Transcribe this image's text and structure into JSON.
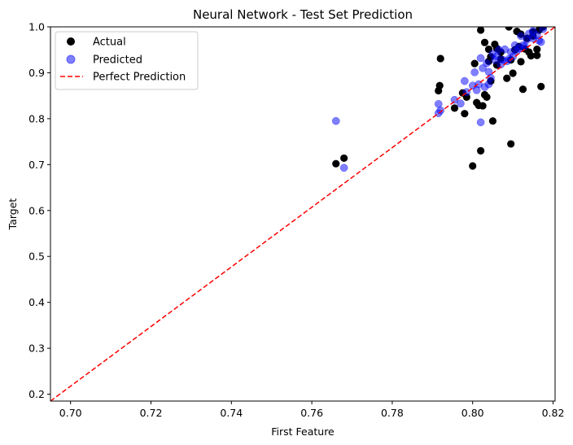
{
  "chart_data": {
    "type": "scatter",
    "title": "Neural Network - Test Set Prediction",
    "xlabel": "First Feature",
    "ylabel": "Target",
    "xlim": [
      0.695,
      0.8205
    ],
    "ylim": [
      0.185,
      1.0
    ],
    "xticks": [
      "0.70",
      "0.72",
      "0.74",
      "0.76",
      "0.78",
      "0.80",
      "0.82"
    ],
    "xtick_values": [
      0.7,
      0.72,
      0.74,
      0.76,
      0.78,
      0.8,
      0.82
    ],
    "yticks": [
      "0.2",
      "0.3",
      "0.4",
      "0.5",
      "0.6",
      "0.7",
      "0.8",
      "0.9",
      "1.0"
    ],
    "ytick_values": [
      0.2,
      0.3,
      0.4,
      0.5,
      0.6,
      0.7,
      0.8,
      0.9,
      1.0
    ],
    "legend_position": "top-left",
    "grid": false,
    "series": [
      {
        "name": "Actual",
        "color": "#000000",
        "marker": "circle",
        "points": [
          [
            0.766,
            0.702
          ],
          [
            0.768,
            0.714
          ],
          [
            0.7915,
            0.861
          ],
          [
            0.7918,
            0.872
          ],
          [
            0.792,
            0.931
          ],
          [
            0.7955,
            0.823
          ],
          [
            0.7975,
            0.856
          ],
          [
            0.798,
            0.811
          ],
          [
            0.7985,
            0.847
          ],
          [
            0.8,
            0.697
          ],
          [
            0.8005,
            0.92
          ],
          [
            0.801,
            0.835
          ],
          [
            0.8015,
            0.829
          ],
          [
            0.802,
            0.993
          ],
          [
            0.802,
            0.73
          ],
          [
            0.8025,
            0.828
          ],
          [
            0.803,
            0.852
          ],
          [
            0.803,
            0.966
          ],
          [
            0.8035,
            0.847
          ],
          [
            0.804,
            0.951
          ],
          [
            0.804,
            0.925
          ],
          [
            0.8045,
            0.882
          ],
          [
            0.8045,
            0.935
          ],
          [
            0.805,
            0.795
          ],
          [
            0.8055,
            0.962
          ],
          [
            0.806,
            0.953
          ],
          [
            0.806,
            0.917
          ],
          [
            0.807,
            0.93
          ],
          [
            0.807,
            0.945
          ],
          [
            0.8085,
            0.888
          ],
          [
            0.809,
            1.0
          ],
          [
            0.8095,
            0.928
          ],
          [
            0.8095,
            0.745
          ],
          [
            0.81,
            0.899
          ],
          [
            0.8105,
            0.95
          ],
          [
            0.811,
            0.99
          ],
          [
            0.8115,
            0.957
          ],
          [
            0.812,
            0.924
          ],
          [
            0.812,
            0.984
          ],
          [
            0.8125,
            0.864
          ],
          [
            0.813,
            0.952
          ],
          [
            0.8135,
            0.975
          ],
          [
            0.814,
            0.945
          ],
          [
            0.8145,
            0.937
          ],
          [
            0.815,
            0.98
          ],
          [
            0.815,
            0.989
          ],
          [
            0.816,
            0.938
          ],
          [
            0.816,
            0.951
          ],
          [
            0.8165,
            0.993
          ],
          [
            0.817,
            0.87
          ],
          [
            0.8175,
            1.0
          ]
        ]
      },
      {
        "name": "Predicted",
        "color": "#0000ff",
        "marker": "circle",
        "points": [
          [
            0.766,
            0.795
          ],
          [
            0.768,
            0.693
          ],
          [
            0.7915,
            0.812
          ],
          [
            0.7915,
            0.832
          ],
          [
            0.792,
            0.818
          ],
          [
            0.7955,
            0.841
          ],
          [
            0.797,
            0.833
          ],
          [
            0.798,
            0.882
          ],
          [
            0.7985,
            0.858
          ],
          [
            0.8,
            0.872
          ],
          [
            0.8005,
            0.901
          ],
          [
            0.801,
            0.862
          ],
          [
            0.8015,
            0.875
          ],
          [
            0.802,
            0.792
          ],
          [
            0.802,
            0.932
          ],
          [
            0.8025,
            0.91
          ],
          [
            0.803,
            0.869
          ],
          [
            0.8035,
            0.921
          ],
          [
            0.804,
            0.875
          ],
          [
            0.804,
            0.902
          ],
          [
            0.8045,
            0.889
          ],
          [
            0.805,
            0.941
          ],
          [
            0.8055,
            0.928
          ],
          [
            0.806,
            0.936
          ],
          [
            0.8065,
            0.95
          ],
          [
            0.807,
            0.918
          ],
          [
            0.8075,
            0.928
          ],
          [
            0.808,
            0.951
          ],
          [
            0.8085,
            0.925
          ],
          [
            0.809,
            0.93
          ],
          [
            0.8095,
            0.945
          ],
          [
            0.81,
            0.935
          ],
          [
            0.8105,
            0.96
          ],
          [
            0.811,
            0.947
          ],
          [
            0.8115,
            0.953
          ],
          [
            0.812,
            0.98
          ],
          [
            0.8125,
            0.96
          ],
          [
            0.813,
            0.958
          ],
          [
            0.8135,
            0.972
          ],
          [
            0.814,
            0.985
          ],
          [
            0.815,
            0.975
          ],
          [
            0.815,
            0.991
          ],
          [
            0.816,
            0.982
          ],
          [
            0.8165,
            0.97
          ],
          [
            0.817,
            0.967
          ],
          [
            0.8175,
            0.995
          ]
        ]
      }
    ],
    "lines": [
      {
        "name": "Perfect Prediction",
        "color": "#ff0000",
        "style": "dashed",
        "from": [
          0.695,
          0.185
        ],
        "to": [
          0.8205,
          1.0
        ]
      }
    ]
  }
}
